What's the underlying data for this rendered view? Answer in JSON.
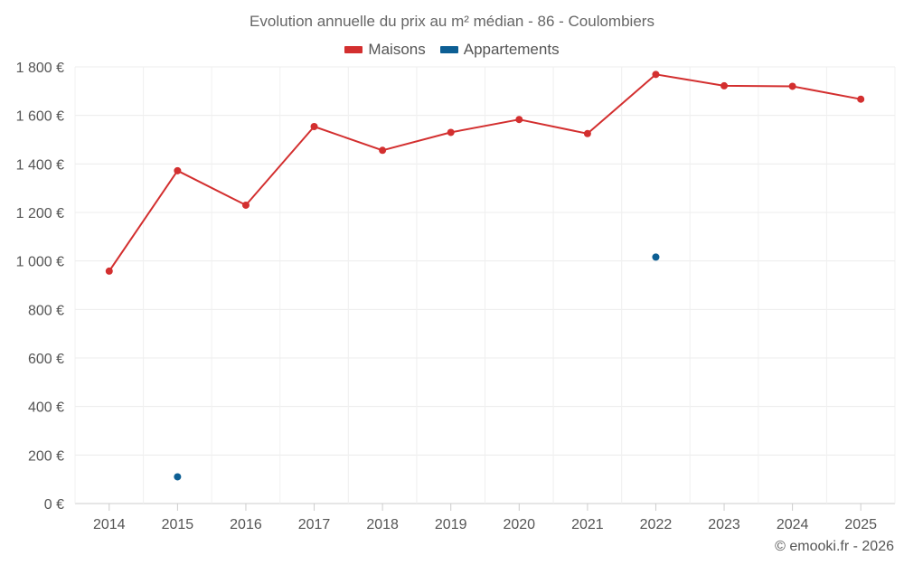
{
  "chart_data": {
    "type": "line",
    "title": "Evolution annuelle du prix au m² médian - 86 - Coulombiers",
    "categories": [
      "2014",
      "2015",
      "2016",
      "2017",
      "2018",
      "2019",
      "2020",
      "2021",
      "2022",
      "2023",
      "2024",
      "2025"
    ],
    "ylim": [
      0,
      1800
    ],
    "yticks": [
      0,
      200,
      400,
      600,
      800,
      1000,
      1200,
      1400,
      1600,
      1800
    ],
    "ytick_labels": [
      "0 €",
      "200 €",
      "400 €",
      "600 €",
      "800 €",
      "1 000 €",
      "1 200 €",
      "1 400 €",
      "1 600 €",
      "1 800 €"
    ],
    "grid": true,
    "legend_position": "top-center",
    "series": [
      {
        "name": "Maisons",
        "color": "#d32f2f",
        "values": [
          958,
          1372,
          1230,
          1554,
          1456,
          1530,
          1583,
          1525,
          1769,
          1722,
          1720,
          1667
        ],
        "line": true
      },
      {
        "name": "Appartements",
        "color": "#0d5f94",
        "values": [
          null,
          110,
          null,
          null,
          null,
          null,
          null,
          null,
          1016,
          null,
          null,
          null
        ],
        "line": false
      }
    ]
  },
  "credit": "© emooki.fr - 2026"
}
